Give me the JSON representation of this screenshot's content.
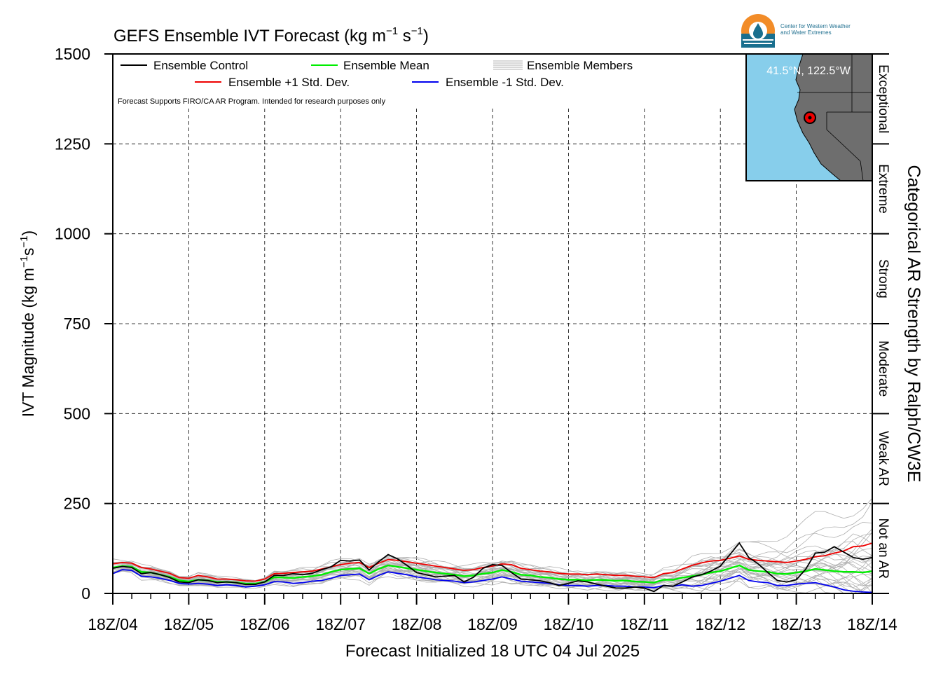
{
  "title_main": "GEFS Ensemble IVT Forecast (kg m",
  "title_exp1": "−1",
  "title_mid": " s",
  "title_exp2": "−1",
  "title_end": ")",
  "ylabel_main": "IVT Magnitude (kg m",
  "ylabel_exp1": "−1",
  "ylabel_mid": "s",
  "ylabel_exp2": "−1",
  "ylabel_end": ")",
  "xlabel": "Forecast Initialized 18 UTC 04 Jul 2025",
  "right_axis_label": "Categorical AR Strength by Ralph/CW3E",
  "notice": "Forecast Supports FIRO/CA AR Program. Intended for research purposes only",
  "location": "41.5°N, 122.5°W",
  "logo": {
    "line1": "Center for Western Weather",
    "line2": "and Water Extremes",
    "icon": "cw3e-logo-icon"
  },
  "legend": {
    "control": "Ensemble Control",
    "mean": "Ensemble Mean",
    "members": "Ensemble Members",
    "plus": "Ensemble +1 Std. Dev.",
    "minus": "Ensemble -1 Std. Dev."
  },
  "colors": {
    "control": "#000000",
    "mean": "#00ee00",
    "plus": "#ee0000",
    "minus": "#0000ee",
    "members": "#b0b0b0",
    "ocean": "#87ceeb",
    "land": "#6e6e6e",
    "marker": "#ee0000"
  },
  "categories": [
    {
      "name": "Not an AR",
      "low": 0,
      "high": 250
    },
    {
      "name": "Weak AR",
      "low": 250,
      "high": 500
    },
    {
      "name": "Moderate",
      "low": 500,
      "high": 750
    },
    {
      "name": "Strong",
      "low": 750,
      "high": 1000
    },
    {
      "name": "Extreme",
      "low": 1000,
      "high": 1250
    },
    {
      "name": "Exceptional",
      "low": 1250,
      "high": 1500
    }
  ],
  "chart_data": {
    "type": "line",
    "title": "GEFS Ensemble IVT Forecast (kg m−1 s−1)",
    "xlabel": "Forecast Initialized 18 UTC 04 Jul 2025",
    "ylabel": "IVT Magnitude (kg m−1s−1)",
    "ylim": [
      0,
      1500
    ],
    "yticks": [
      0,
      250,
      500,
      750,
      1000,
      1250,
      1500
    ],
    "xlim_hours": [
      0,
      240
    ],
    "step_hours": 3,
    "xtick_labels": [
      "18Z/04",
      "18Z/05",
      "18Z/06",
      "18Z/07",
      "18Z/08",
      "18Z/09",
      "18Z/10",
      "18Z/11",
      "18Z/12",
      "18Z/13",
      "18Z/14"
    ],
    "grid": true,
    "legend_position": "top-left",
    "series": [
      {
        "name": "Ensemble Control",
        "key": "control",
        "values": [
          70,
          75,
          72,
          55,
          58,
          52,
          44,
          32,
          30,
          38,
          36,
          30,
          32,
          30,
          25,
          25,
          32,
          50,
          50,
          55,
          52,
          56,
          66,
          74,
          92,
          90,
          93,
          65,
          88,
          108,
          96,
          78,
          58,
          52,
          46,
          48,
          50,
          32,
          45,
          70,
          80,
          78,
          58,
          40,
          38,
          35,
          30,
          22,
          28,
          35,
          32,
          26,
          20,
          15,
          15,
          18,
          15,
          5,
          22,
          20,
          32,
          45,
          52,
          62,
          76,
          108,
          140,
          100,
          82,
          58,
          36,
          32,
          38,
          68,
          112,
          115,
          130,
          115,
          100,
          95,
          100
        ]
      },
      {
        "name": "Ensemble Mean",
        "key": "mean",
        "values": [
          72,
          76,
          74,
          60,
          58,
          52,
          46,
          36,
          33,
          38,
          36,
          32,
          32,
          30,
          27,
          27,
          32,
          45,
          44,
          43,
          46,
          48,
          52,
          60,
          66,
          68,
          70,
          55,
          68,
          78,
          74,
          70,
          66,
          62,
          58,
          55,
          52,
          48,
          50,
          55,
          58,
          65,
          60,
          52,
          50,
          46,
          44,
          40,
          38,
          38,
          36,
          38,
          37,
          35,
          36,
          33,
          32,
          30,
          38,
          38,
          44,
          48,
          52,
          58,
          62,
          70,
          78,
          65,
          62,
          60,
          55,
          54,
          58,
          62,
          68,
          65,
          62,
          60,
          60,
          58,
          62
        ]
      },
      {
        "name": "Ensemble +1 Std. Dev.",
        "key": "plus",
        "values": [
          82,
          86,
          84,
          72,
          68,
          62,
          56,
          44,
          42,
          50,
          46,
          40,
          40,
          38,
          35,
          34,
          40,
          55,
          56,
          58,
          60,
          62,
          68,
          74,
          80,
          84,
          86,
          72,
          84,
          94,
          92,
          88,
          84,
          80,
          76,
          72,
          68,
          64,
          66,
          72,
          76,
          82,
          80,
          70,
          66,
          62,
          60,
          56,
          54,
          54,
          52,
          54,
          52,
          50,
          50,
          48,
          46,
          44,
          55,
          58,
          68,
          78,
          85,
          90,
          92,
          98,
          104,
          95,
          92,
          90,
          88,
          86,
          90,
          95,
          102,
          105,
          112,
          118,
          130,
          132,
          140
        ]
      },
      {
        "name": "Ensemble -1 Std. Dev.",
        "key": "minus",
        "values": [
          55,
          66,
          64,
          48,
          46,
          42,
          36,
          28,
          26,
          28,
          26,
          22,
          24,
          22,
          18,
          20,
          24,
          33,
          32,
          28,
          30,
          34,
          36,
          42,
          50,
          52,
          54,
          38,
          50,
          60,
          56,
          52,
          46,
          42,
          38,
          36,
          34,
          30,
          32,
          36,
          40,
          46,
          40,
          34,
          32,
          30,
          28,
          24,
          22,
          22,
          20,
          22,
          22,
          20,
          20,
          18,
          18,
          16,
          22,
          20,
          24,
          20,
          22,
          28,
          34,
          42,
          50,
          36,
          32,
          30,
          22,
          22,
          26,
          28,
          30,
          24,
          18,
          10,
          6,
          4,
          3
        ]
      }
    ]
  }
}
